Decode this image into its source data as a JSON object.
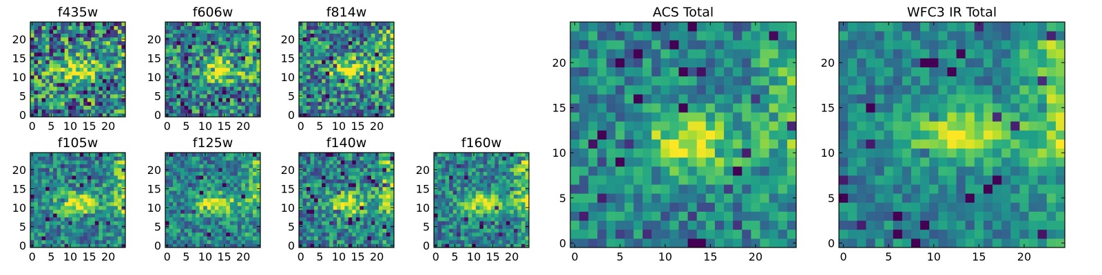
{
  "chart_data": [
    {
      "type": "heatmap",
      "title": "f435w",
      "xticks": [
        "0",
        "5",
        "10",
        "15",
        "20"
      ],
      "yticks": [
        "0",
        "5",
        "10",
        "15",
        "20"
      ],
      "size": 25,
      "colormap": "viridis",
      "seed": 11,
      "noise": 0.85,
      "hotspot": [
        12,
        12
      ],
      "edge": 0.2
    },
    {
      "type": "heatmap",
      "title": "f606w",
      "xticks": [
        "0",
        "5",
        "10",
        "15",
        "20"
      ],
      "yticks": [
        "0",
        "5",
        "10",
        "15",
        "20"
      ],
      "size": 25,
      "colormap": "viridis",
      "seed": 23,
      "noise": 0.7,
      "hotspot": [
        14,
        12
      ],
      "edge": 0.3
    },
    {
      "type": "heatmap",
      "title": "f814w",
      "xticks": [
        "0",
        "5",
        "10",
        "15",
        "20"
      ],
      "yticks": [
        "0",
        "5",
        "10",
        "15",
        "20"
      ],
      "size": 25,
      "colormap": "viridis",
      "seed": 37,
      "noise": 0.7,
      "hotspot": [
        13,
        12
      ],
      "edge": 0.5
    },
    {
      "type": "heatmap",
      "title": "f105w",
      "xticks": [
        "0",
        "5",
        "10",
        "15",
        "20"
      ],
      "yticks": [
        "0",
        "5",
        "10",
        "15",
        "20"
      ],
      "size": 25,
      "colormap": "viridis",
      "seed": 41,
      "noise": 0.5,
      "hotspot": [
        12,
        11
      ],
      "edge": 0.6
    },
    {
      "type": "heatmap",
      "title": "f125w",
      "xticks": [
        "0",
        "5",
        "10",
        "15",
        "20"
      ],
      "yticks": [
        "0",
        "5",
        "10",
        "15",
        "20"
      ],
      "size": 25,
      "colormap": "viridis",
      "seed": 53,
      "noise": 0.5,
      "hotspot": [
        13,
        11
      ],
      "edge": 0.6
    },
    {
      "type": "heatmap",
      "title": "f140w",
      "xticks": [
        "0",
        "5",
        "10",
        "15",
        "20"
      ],
      "yticks": [
        "0",
        "5",
        "10",
        "15",
        "20"
      ],
      "size": 25,
      "colormap": "viridis",
      "seed": 67,
      "noise": 0.55,
      "hotspot": [
        12,
        11
      ],
      "edge": 0.7
    },
    {
      "type": "heatmap",
      "title": "f160w",
      "xticks": [
        "0",
        "5",
        "10",
        "15",
        "20"
      ],
      "yticks": [
        "0",
        "5",
        "10",
        "15",
        "20"
      ],
      "size": 25,
      "colormap": "viridis",
      "seed": 79,
      "noise": 0.5,
      "hotspot": [
        12,
        11
      ],
      "edge": 0.7
    },
    {
      "type": "heatmap",
      "title": "ACS Total",
      "xticks": [
        "0",
        "5",
        "10",
        "15",
        "20"
      ],
      "yticks": [
        "0",
        "5",
        "10",
        "15",
        "20"
      ],
      "size": 25,
      "colormap": "viridis",
      "seed": 97,
      "noise": 0.45,
      "hotspot": [
        13,
        11
      ],
      "edge": 0.45
    },
    {
      "type": "heatmap",
      "title": "WFC3 IR Total",
      "xticks": [
        "0",
        "5",
        "10",
        "15",
        "20"
      ],
      "yticks": [
        "0",
        "5",
        "10",
        "15",
        "20"
      ],
      "size": 25,
      "colormap": "viridis",
      "seed": 113,
      "noise": 0.35,
      "hotspot": [
        13,
        12
      ],
      "edge": 0.75
    }
  ]
}
